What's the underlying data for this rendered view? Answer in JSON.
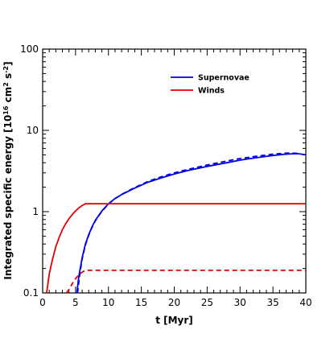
{
  "chart_data": {
    "type": "line",
    "title": "",
    "xlabel": "t [Myr]",
    "ylabel_parts": {
      "main": "Integrated specific energy [10",
      "exp1": "16",
      "mid": " cm",
      "exp2": "2",
      "mid2": " s",
      "exp3": "-2",
      "end": "]"
    },
    "xlim": [
      0,
      40
    ],
    "ylim": [
      0.1,
      100
    ],
    "yscale": "log",
    "x_ticks": [
      "0",
      "5",
      "10",
      "15",
      "20",
      "25",
      "30",
      "35",
      "40"
    ],
    "y_ticks": [
      "0.1",
      "1",
      "10",
      "100"
    ],
    "grid": false,
    "legend_position": "top-right",
    "legend": [
      {
        "name": "Supernovae",
        "color": "#0000e6"
      },
      {
        "name": "Winds",
        "color": "#e60000"
      }
    ],
    "series": [
      {
        "name": "Supernovae",
        "style": "solid",
        "color": "#0000e6",
        "x": [
          5.2,
          5.5,
          6,
          6.5,
          7,
          7.5,
          8,
          9,
          10,
          11,
          12,
          14,
          16,
          18,
          20,
          22,
          25,
          28,
          30,
          32,
          35,
          37,
          38,
          39,
          40
        ],
        "y": [
          0.1,
          0.16,
          0.27,
          0.4,
          0.52,
          0.65,
          0.78,
          1.02,
          1.25,
          1.45,
          1.62,
          1.95,
          2.3,
          2.6,
          2.9,
          3.2,
          3.6,
          4.0,
          4.3,
          4.55,
          4.9,
          5.1,
          5.15,
          5.15,
          5.0
        ]
      },
      {
        "name": "Supernovae (dashed)",
        "style": "dashed",
        "color": "#0000e6",
        "x": [
          5.3,
          5.6,
          6,
          6.5,
          7,
          7.5,
          8,
          9,
          10,
          11,
          12,
          14,
          16,
          18,
          20,
          22,
          25,
          28,
          30,
          32,
          35,
          37,
          38,
          39
        ],
        "y": [
          0.1,
          0.16,
          0.26,
          0.39,
          0.51,
          0.64,
          0.77,
          1.01,
          1.24,
          1.45,
          1.63,
          1.98,
          2.35,
          2.68,
          3.0,
          3.3,
          3.75,
          4.2,
          4.5,
          4.75,
          5.1,
          5.25,
          5.25,
          5.2
        ]
      },
      {
        "name": "Winds",
        "style": "solid",
        "color": "#e60000",
        "x": [
          0.6,
          0.8,
          1,
          1.5,
          2,
          2.5,
          3,
          3.5,
          4,
          4.5,
          5,
          5.5,
          6,
          6.5,
          10,
          20,
          30,
          40
        ],
        "y": [
          0.1,
          0.13,
          0.17,
          0.26,
          0.37,
          0.48,
          0.6,
          0.71,
          0.82,
          0.92,
          1.02,
          1.11,
          1.19,
          1.25,
          1.25,
          1.25,
          1.25,
          1.25
        ]
      },
      {
        "name": "Winds (dashed)",
        "style": "dashed",
        "color": "#e60000",
        "x": [
          3.6,
          4,
          4.5,
          5,
          5.5,
          6,
          6.5,
          10,
          20,
          30,
          40
        ],
        "y": [
          0.1,
          0.11,
          0.13,
          0.15,
          0.167,
          0.18,
          0.19,
          0.19,
          0.19,
          0.19,
          0.19
        ]
      }
    ]
  }
}
